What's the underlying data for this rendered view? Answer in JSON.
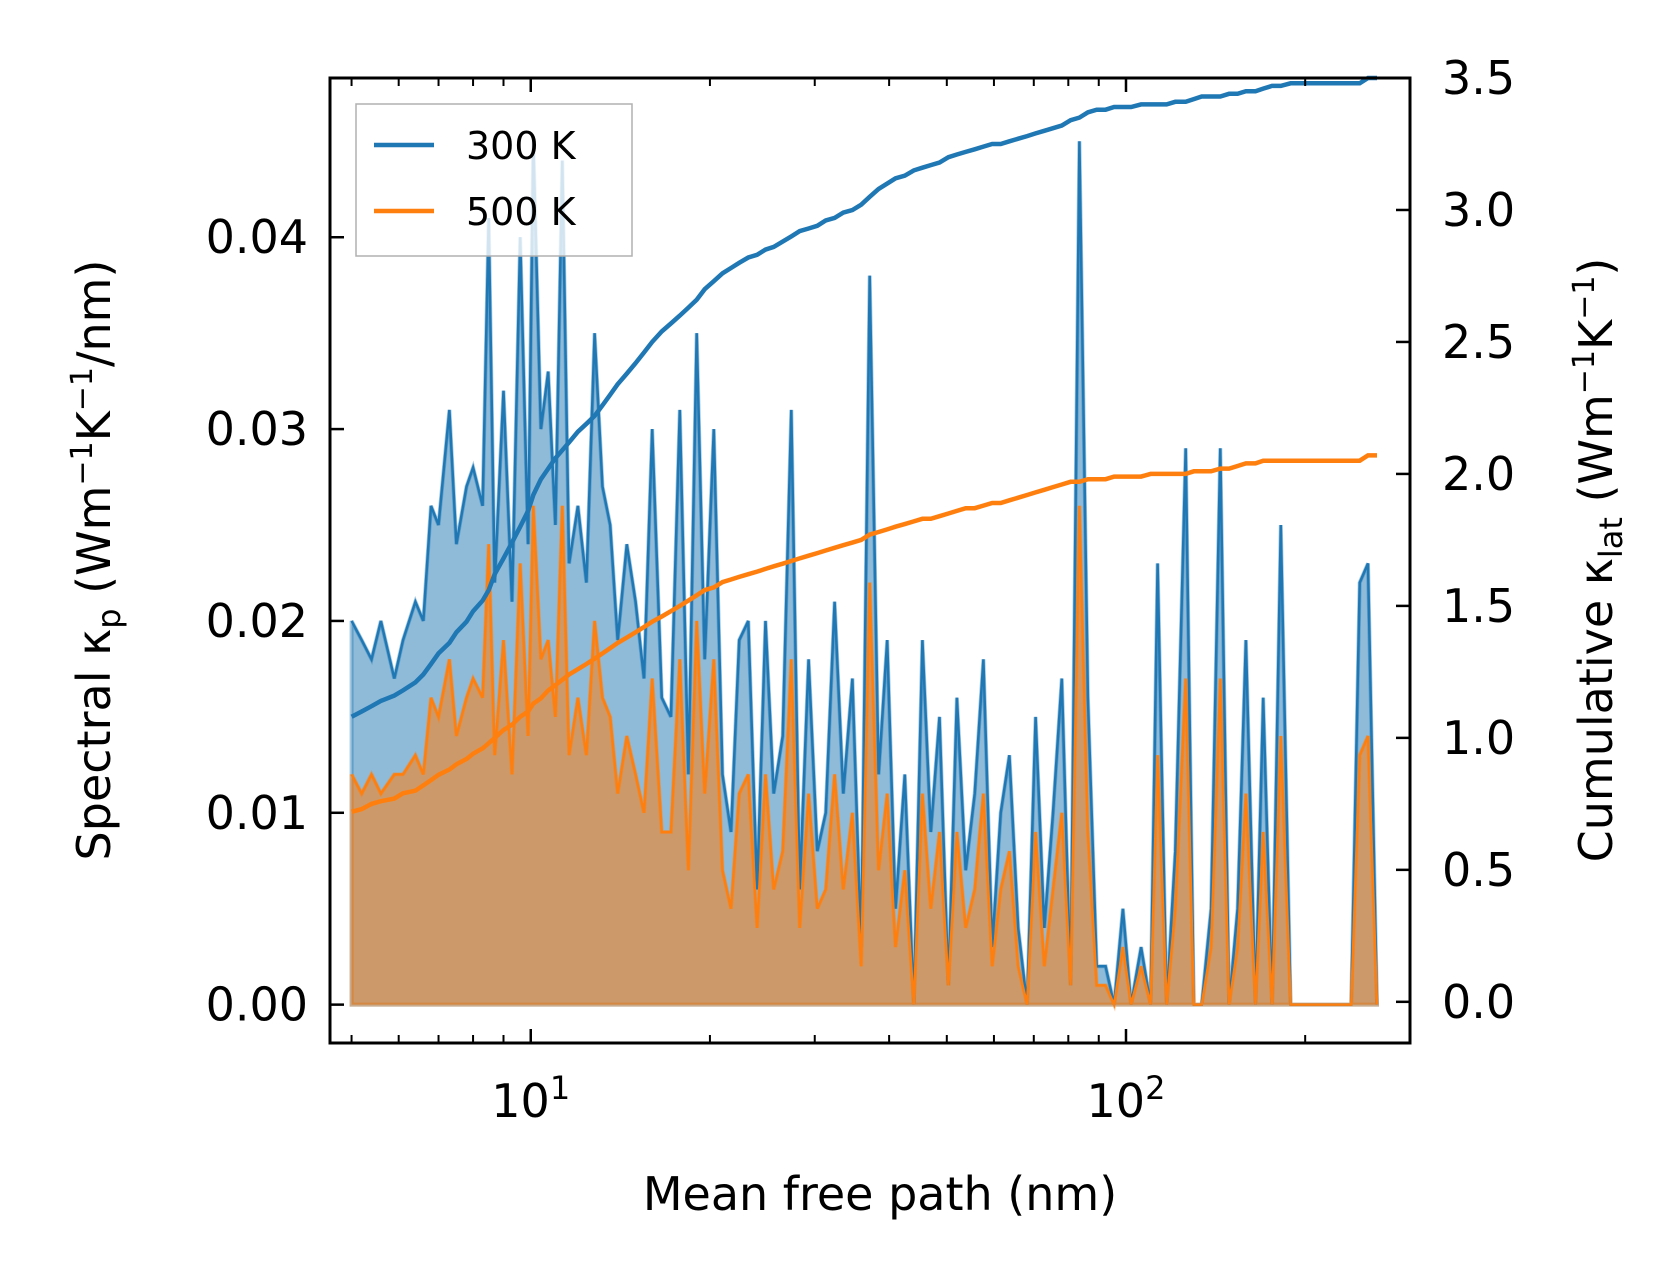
{
  "chart_data": {
    "type": "line",
    "xscale": "log",
    "xlabel": "Mean free path (nm)",
    "xlim": [
      4.6,
      300
    ],
    "x_ticks": [
      {
        "value": 10,
        "label": "10",
        "exp": "1"
      },
      {
        "value": 100,
        "label": "10",
        "exp": "2"
      }
    ],
    "ylabel_left": {
      "prefix": "Spectral κ",
      "sub": "p",
      "units": " (Wm",
      "e1": "−1",
      "mid": "K",
      "e2": "−1",
      "tail": "/nm)"
    },
    "ylabel_right": {
      "prefix": "Cumulative κ",
      "sub": "lat",
      "units": " (Wm",
      "e1": "−1",
      "mid": "K",
      "e2": "−1",
      "tail": ")"
    },
    "ylim_left": [
      -0.002,
      0.0483
    ],
    "ylim_right": [
      -0.156,
      3.5
    ],
    "yticks_left": [
      "0.00",
      "0.01",
      "0.02",
      "0.03",
      "0.04"
    ],
    "yticks_right": [
      "0.0",
      "0.5",
      "1.0",
      "1.5",
      "2.0",
      "2.5",
      "3.0",
      "3.5"
    ],
    "legend": [
      {
        "name": "300 K",
        "color": "#1f77b4"
      },
      {
        "name": "500 K",
        "color": "#ff7f0e"
      }
    ],
    "series": [
      {
        "name": "300 K",
        "axis": "left",
        "kind": "spectral",
        "color": "#1f77b4",
        "x": [
          5,
          5.2,
          5.4,
          5.6,
          5.9,
          6.1,
          6.4,
          6.6,
          6.8,
          7.0,
          7.3,
          7.5,
          7.8,
          8.0,
          8.3,
          8.5,
          8.7,
          9.0,
          9.3,
          9.6,
          9.9,
          10.1,
          10.4,
          10.7,
          11.0,
          11.3,
          11.6,
          12.0,
          12.4,
          12.8,
          13.2,
          13.6,
          14.0,
          14.5,
          15.0,
          15.5,
          16.0,
          16.6,
          17.2,
          17.8,
          18.4,
          19.0,
          19.6,
          20.3,
          21.0,
          21.7,
          22.4,
          23.2,
          24.0,
          24.8,
          25.6,
          26.5,
          27.4,
          28.3,
          29.3,
          30.3,
          31.3,
          32.4,
          33.5,
          34.7,
          35.9,
          37.1,
          38.4,
          39.7,
          41.0,
          42.5,
          44.0,
          45.5,
          47.0,
          48.6,
          50.3,
          52.0,
          53.8,
          55.7,
          57.6,
          59.6,
          61.6,
          63.7,
          65.9,
          68.2,
          70.5,
          72.9,
          75.4,
          78.0,
          80.7,
          83.5,
          86.3,
          89.3,
          92.4,
          95.5,
          98.8,
          102,
          106,
          110,
          113,
          117,
          121,
          126,
          130,
          134,
          139,
          144,
          149,
          154,
          159,
          165,
          170,
          176,
          182,
          189,
          195,
          202,
          209,
          216,
          223,
          231,
          239,
          247,
          255,
          264
        ],
        "values": [
          0.02,
          0.019,
          0.018,
          0.02,
          0.017,
          0.019,
          0.021,
          0.02,
          0.026,
          0.025,
          0.031,
          0.024,
          0.027,
          0.028,
          0.026,
          0.041,
          0.022,
          0.032,
          0.021,
          0.04,
          0.024,
          0.045,
          0.03,
          0.033,
          0.025,
          0.044,
          0.023,
          0.026,
          0.022,
          0.035,
          0.027,
          0.025,
          0.019,
          0.024,
          0.021,
          0.017,
          0.03,
          0.016,
          0.015,
          0.031,
          0.012,
          0.035,
          0.018,
          0.03,
          0.012,
          0.009,
          0.019,
          0.02,
          0.006,
          0.02,
          0.011,
          0.014,
          0.031,
          0.006,
          0.018,
          0.008,
          0.01,
          0.021,
          0.011,
          0.017,
          0.003,
          0.038,
          0.012,
          0.019,
          0.005,
          0.012,
          0.0,
          0.019,
          0.009,
          0.015,
          0.001,
          0.016,
          0.007,
          0.011,
          0.018,
          0.003,
          0.01,
          0.013,
          0.004,
          0.0,
          0.015,
          0.004,
          0.01,
          0.017,
          0.001,
          0.045,
          0.016,
          0.002,
          0.002,
          0.0,
          0.005,
          0.0,
          0.003,
          0.0,
          0.023,
          0.0,
          0.008,
          0.029,
          0.0,
          0.0,
          0.005,
          0.029,
          0.0,
          0.005,
          0.019,
          0.0,
          0.016,
          0.0,
          0.025,
          0.0,
          0.0,
          0.0,
          0.0,
          0.0,
          0.0,
          0.0,
          0.0,
          0.022,
          0.023,
          0.0
        ],
        "cumulative": [
          1.08,
          1.1,
          1.12,
          1.14,
          1.16,
          1.18,
          1.21,
          1.24,
          1.28,
          1.32,
          1.36,
          1.4,
          1.44,
          1.48,
          1.52,
          1.56,
          1.62,
          1.68,
          1.74,
          1.8,
          1.86,
          1.92,
          1.98,
          2.02,
          2.06,
          2.09,
          2.12,
          2.16,
          2.19,
          2.22,
          2.26,
          2.3,
          2.34,
          2.38,
          2.42,
          2.46,
          2.5,
          2.54,
          2.57,
          2.6,
          2.63,
          2.66,
          2.7,
          2.73,
          2.76,
          2.78,
          2.8,
          2.82,
          2.83,
          2.85,
          2.86,
          2.88,
          2.9,
          2.92,
          2.93,
          2.94,
          2.96,
          2.97,
          2.99,
          3.0,
          3.02,
          3.05,
          3.08,
          3.1,
          3.12,
          3.13,
          3.15,
          3.16,
          3.17,
          3.18,
          3.2,
          3.21,
          3.22,
          3.23,
          3.24,
          3.25,
          3.25,
          3.26,
          3.27,
          3.28,
          3.29,
          3.3,
          3.31,
          3.32,
          3.34,
          3.35,
          3.37,
          3.38,
          3.38,
          3.39,
          3.39,
          3.39,
          3.4,
          3.4,
          3.4,
          3.4,
          3.41,
          3.41,
          3.42,
          3.43,
          3.43,
          3.43,
          3.44,
          3.44,
          3.45,
          3.45,
          3.46,
          3.47,
          3.47,
          3.48,
          3.48,
          3.48,
          3.48,
          3.48,
          3.48,
          3.48,
          3.48,
          3.48,
          3.5,
          3.5
        ]
      },
      {
        "name": "500 K",
        "axis": "left",
        "kind": "spectral",
        "color": "#ff7f0e",
        "x": [
          5,
          5.2,
          5.4,
          5.6,
          5.9,
          6.1,
          6.4,
          6.6,
          6.8,
          7.0,
          7.3,
          7.5,
          7.8,
          8.0,
          8.3,
          8.5,
          8.7,
          9.0,
          9.3,
          9.6,
          9.9,
          10.1,
          10.4,
          10.7,
          11.0,
          11.3,
          11.6,
          12.0,
          12.4,
          12.8,
          13.2,
          13.6,
          14.0,
          14.5,
          15.0,
          15.5,
          16.0,
          16.6,
          17.2,
          17.8,
          18.4,
          19.0,
          19.6,
          20.3,
          21.0,
          21.7,
          22.4,
          23.2,
          24.0,
          24.8,
          25.6,
          26.5,
          27.4,
          28.3,
          29.3,
          30.3,
          31.3,
          32.4,
          33.5,
          34.7,
          35.9,
          37.1,
          38.4,
          39.7,
          41.0,
          42.5,
          44.0,
          45.5,
          47.0,
          48.6,
          50.3,
          52.0,
          53.8,
          55.7,
          57.6,
          59.6,
          61.6,
          63.7,
          65.9,
          68.2,
          70.5,
          72.9,
          75.4,
          78.0,
          80.7,
          83.5,
          86.3,
          89.3,
          92.4,
          95.5,
          98.8,
          102,
          106,
          110,
          113,
          117,
          121,
          126,
          130,
          134,
          139,
          144,
          149,
          154,
          159,
          165,
          170,
          176,
          182,
          189,
          195,
          202,
          209,
          216,
          223,
          231,
          239,
          247,
          255,
          264
        ],
        "values": [
          0.012,
          0.011,
          0.012,
          0.011,
          0.012,
          0.012,
          0.013,
          0.012,
          0.016,
          0.015,
          0.018,
          0.014,
          0.016,
          0.017,
          0.016,
          0.024,
          0.013,
          0.019,
          0.012,
          0.023,
          0.014,
          0.026,
          0.018,
          0.019,
          0.015,
          0.026,
          0.013,
          0.016,
          0.013,
          0.02,
          0.016,
          0.015,
          0.011,
          0.014,
          0.012,
          0.01,
          0.017,
          0.009,
          0.009,
          0.018,
          0.007,
          0.02,
          0.011,
          0.018,
          0.007,
          0.005,
          0.011,
          0.012,
          0.004,
          0.012,
          0.006,
          0.008,
          0.018,
          0.004,
          0.011,
          0.005,
          0.006,
          0.012,
          0.006,
          0.01,
          0.002,
          0.022,
          0.007,
          0.011,
          0.003,
          0.007,
          0.0,
          0.011,
          0.005,
          0.009,
          0.001,
          0.009,
          0.004,
          0.006,
          0.011,
          0.002,
          0.006,
          0.008,
          0.002,
          0.0,
          0.009,
          0.002,
          0.006,
          0.01,
          0.001,
          0.026,
          0.009,
          0.001,
          0.001,
          0.0,
          0.003,
          0.0,
          0.002,
          0.0,
          0.013,
          0.0,
          0.005,
          0.017,
          0.0,
          0.0,
          0.003,
          0.017,
          0.0,
          0.003,
          0.011,
          0.0,
          0.009,
          0.0,
          0.014,
          0.0,
          0.0,
          0.0,
          0.0,
          0.0,
          0.0,
          0.0,
          0.0,
          0.013,
          0.014,
          0.0
        ],
        "cumulative": [
          0.72,
          0.73,
          0.75,
          0.76,
          0.77,
          0.79,
          0.8,
          0.82,
          0.84,
          0.86,
          0.88,
          0.9,
          0.92,
          0.94,
          0.96,
          0.98,
          1.0,
          1.03,
          1.05,
          1.08,
          1.1,
          1.13,
          1.15,
          1.18,
          1.2,
          1.22,
          1.24,
          1.26,
          1.28,
          1.3,
          1.32,
          1.34,
          1.36,
          1.38,
          1.4,
          1.42,
          1.44,
          1.46,
          1.48,
          1.5,
          1.52,
          1.54,
          1.56,
          1.57,
          1.59,
          1.6,
          1.61,
          1.62,
          1.63,
          1.64,
          1.65,
          1.66,
          1.67,
          1.68,
          1.69,
          1.7,
          1.71,
          1.72,
          1.73,
          1.74,
          1.75,
          1.77,
          1.78,
          1.79,
          1.8,
          1.81,
          1.82,
          1.83,
          1.83,
          1.84,
          1.85,
          1.86,
          1.87,
          1.87,
          1.88,
          1.89,
          1.89,
          1.9,
          1.91,
          1.92,
          1.93,
          1.94,
          1.95,
          1.96,
          1.97,
          1.97,
          1.98,
          1.98,
          1.98,
          1.99,
          1.99,
          1.99,
          1.99,
          2.0,
          2.0,
          2.0,
          2.0,
          2.0,
          2.01,
          2.01,
          2.01,
          2.02,
          2.02,
          2.03,
          2.04,
          2.04,
          2.05,
          2.05,
          2.05,
          2.05,
          2.05,
          2.05,
          2.05,
          2.05,
          2.05,
          2.05,
          2.05,
          2.05,
          2.07,
          2.07
        ]
      }
    ]
  }
}
